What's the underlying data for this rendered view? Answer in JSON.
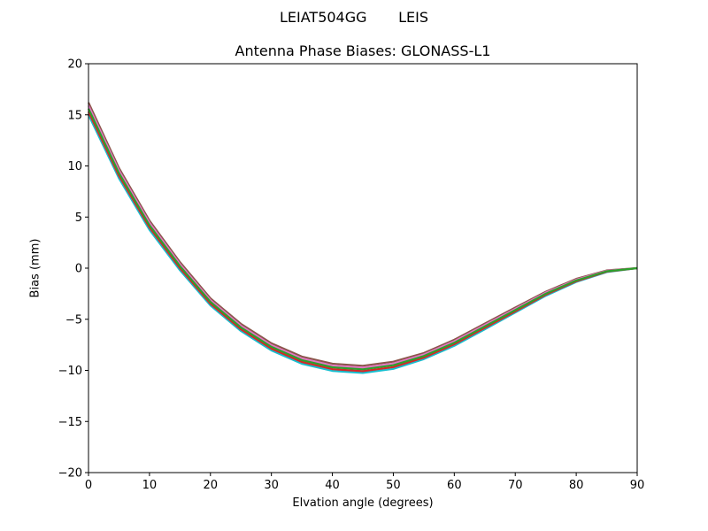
{
  "chart_data": {
    "type": "line",
    "suptitle": "LEIAT504GG       LEIS",
    "title": "Antenna Phase Biases: GLONASS-L1",
    "xlabel": "Elvation angle (degrees)",
    "ylabel": "Bias (mm)",
    "xlim": [
      0,
      90
    ],
    "ylim": [
      -20,
      20
    ],
    "xticks": [
      0,
      10,
      20,
      30,
      40,
      50,
      60,
      70,
      80,
      90
    ],
    "yticks": [
      -20,
      -15,
      -10,
      -5,
      0,
      5,
      10,
      15,
      20
    ],
    "ytick_labels": [
      "−20",
      "−15",
      "−10",
      "−5",
      "0",
      "5",
      "10",
      "15",
      "20"
    ],
    "grid": false,
    "x": [
      0,
      5,
      10,
      15,
      20,
      25,
      30,
      35,
      40,
      45,
      50,
      55,
      60,
      65,
      70,
      75,
      80,
      85,
      90
    ],
    "series": [
      {
        "color": "#8c564b",
        "values": [
          16.2,
          9.8,
          4.65,
          0.6,
          -2.95,
          -5.45,
          -7.35,
          -8.65,
          -9.35,
          -9.55,
          -9.15,
          -8.3,
          -7.0,
          -5.42,
          -3.85,
          -2.3,
          -1.05,
          -0.22,
          0
        ]
      },
      {
        "color": "#e377c2",
        "values": [
          15.9,
          9.55,
          4.43,
          0.4,
          -3.13,
          -5.63,
          -7.53,
          -8.83,
          -9.53,
          -9.73,
          -9.33,
          -8.45,
          -7.15,
          -5.56,
          -3.98,
          -2.4,
          -1.13,
          -0.26,
          0
        ]
      },
      {
        "color": "#17becf",
        "values": [
          15.0,
          8.8,
          3.75,
          -0.2,
          -3.65,
          -6.15,
          -8.05,
          -9.35,
          -10.05,
          -10.25,
          -9.85,
          -8.9,
          -7.6,
          -5.98,
          -4.35,
          -2.7,
          -1.35,
          -0.38,
          0
        ]
      },
      {
        "color": "#d62728",
        "values": [
          15.3,
          9.05,
          3.98,
          0.0,
          -3.48,
          -5.98,
          -7.88,
          -9.18,
          -9.88,
          -10.08,
          -9.68,
          -8.75,
          -7.45,
          -5.84,
          -4.23,
          -2.6,
          -1.28,
          -0.34,
          0
        ]
      },
      {
        "color": "#2ca02c",
        "values": [
          15.6,
          9.3,
          4.2,
          0.2,
          -3.3,
          -5.8,
          -7.7,
          -9.0,
          -9.7,
          -9.9,
          -9.5,
          -8.6,
          -7.3,
          -5.7,
          -4.1,
          -2.5,
          -1.2,
          -0.3,
          0
        ]
      }
    ]
  }
}
